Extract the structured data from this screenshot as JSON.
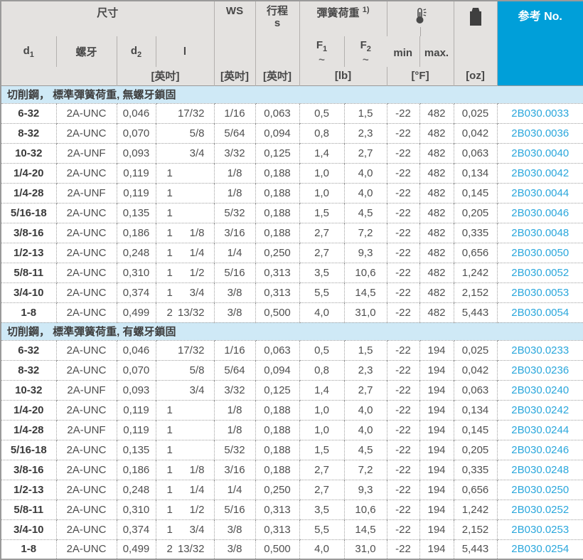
{
  "colors": {
    "accent_header_blue": "#009fd9",
    "ref_link_blue": "#2ba7dc",
    "section_header_blue": "#cfe9f6",
    "header_gray": "#e4e2e0"
  },
  "header": {
    "dim_group": "尺寸",
    "d1_base": "d",
    "d1_sub": "1",
    "thread": "螺牙",
    "d2_base": "d",
    "d2_sub": "2",
    "l_label": "l",
    "inch_unit_dim": "[英吋]",
    "ws": "WS",
    "inch_unit_ws": "[英吋]",
    "stroke_line1": "行程",
    "stroke_line2": "s",
    "inch_unit_stroke": "[英吋]",
    "spring_group": "彈簧荷重",
    "spring_footnote": "1)",
    "f1_base": "F",
    "f1_sub": "1",
    "f1_tilde": "~",
    "f2_base": "F",
    "f2_sub": "2",
    "f2_tilde": "~",
    "lb_unit": "[lb]",
    "temp_min": "min",
    "temp_max": "max.",
    "temp_unit": "[°F]",
    "weight_unit": "[oz]",
    "ref_label": "参考 No.",
    "icons": {
      "temperature": "thermometer-icon",
      "weight": "weight-icon"
    }
  },
  "sections": [
    {
      "title": "切削鋼， 標準彈簧荷重, 無螺牙鎖固",
      "rows": [
        {
          "d1": "6-32",
          "thread": "2A-UNC",
          "d2": "0,046",
          "l_int": "",
          "l_frac": "17/32",
          "ws": "1/16",
          "s": "0,063",
          "f1": "0,5",
          "f2": "1,5",
          "min": "-22",
          "max": "482",
          "oz": "0,025",
          "ref": "2B030.0033"
        },
        {
          "d1": "8-32",
          "thread": "2A-UNC",
          "d2": "0,070",
          "l_int": "",
          "l_frac": "5/8",
          "ws": "5/64",
          "s": "0,094",
          "f1": "0,8",
          "f2": "2,3",
          "min": "-22",
          "max": "482",
          "oz": "0,042",
          "ref": "2B030.0036"
        },
        {
          "d1": "10-32",
          "thread": "2A-UNF",
          "d2": "0,093",
          "l_int": "",
          "l_frac": "3/4",
          "ws": "3/32",
          "s": "0,125",
          "f1": "1,4",
          "f2": "2,7",
          "min": "-22",
          "max": "482",
          "oz": "0,063",
          "ref": "2B030.0040"
        },
        {
          "d1": "1/4-20",
          "thread": "2A-UNC",
          "d2": "0,119",
          "l_int": "1",
          "l_frac": "",
          "ws": "1/8",
          "s": "0,188",
          "f1": "1,0",
          "f2": "4,0",
          "min": "-22",
          "max": "482",
          "oz": "0,134",
          "ref": "2B030.0042"
        },
        {
          "d1": "1/4-28",
          "thread": "2A-UNF",
          "d2": "0,119",
          "l_int": "1",
          "l_frac": "",
          "ws": "1/8",
          "s": "0,188",
          "f1": "1,0",
          "f2": "4,0",
          "min": "-22",
          "max": "482",
          "oz": "0,145",
          "ref": "2B030.0044"
        },
        {
          "d1": "5/16-18",
          "thread": "2A-UNC",
          "d2": "0,135",
          "l_int": "1",
          "l_frac": "",
          "ws": "5/32",
          "s": "0,188",
          "f1": "1,5",
          "f2": "4,5",
          "min": "-22",
          "max": "482",
          "oz": "0,205",
          "ref": "2B030.0046"
        },
        {
          "d1": "3/8-16",
          "thread": "2A-UNC",
          "d2": "0,186",
          "l_int": "1",
          "l_frac": "1/8",
          "ws": "3/16",
          "s": "0,188",
          "f1": "2,7",
          "f2": "7,2",
          "min": "-22",
          "max": "482",
          "oz": "0,335",
          "ref": "2B030.0048"
        },
        {
          "d1": "1/2-13",
          "thread": "2A-UNC",
          "d2": "0,248",
          "l_int": "1",
          "l_frac": "1/4",
          "ws": "1/4",
          "s": "0,250",
          "f1": "2,7",
          "f2": "9,3",
          "min": "-22",
          "max": "482",
          "oz": "0,656",
          "ref": "2B030.0050"
        },
        {
          "d1": "5/8-11",
          "thread": "2A-UNC",
          "d2": "0,310",
          "l_int": "1",
          "l_frac": "1/2",
          "ws": "5/16",
          "s": "0,313",
          "f1": "3,5",
          "f2": "10,6",
          "min": "-22",
          "max": "482",
          "oz": "1,242",
          "ref": "2B030.0052"
        },
        {
          "d1": "3/4-10",
          "thread": "2A-UNC",
          "d2": "0,374",
          "l_int": "1",
          "l_frac": "3/4",
          "ws": "3/8",
          "s": "0,313",
          "f1": "5,5",
          "f2": "14,5",
          "min": "-22",
          "max": "482",
          "oz": "2,152",
          "ref": "2B030.0053"
        },
        {
          "d1": "1-8",
          "thread": "2A-UNC",
          "d2": "0,499",
          "l_int": "2",
          "l_frac": "13/32",
          "ws": "3/8",
          "s": "0,500",
          "f1": "4,0",
          "f2": "31,0",
          "min": "-22",
          "max": "482",
          "oz": "5,443",
          "ref": "2B030.0054"
        }
      ]
    },
    {
      "title": "切削鋼， 標準彈簧荷重, 有螺牙鎖固",
      "rows": [
        {
          "d1": "6-32",
          "thread": "2A-UNC",
          "d2": "0,046",
          "l_int": "",
          "l_frac": "17/32",
          "ws": "1/16",
          "s": "0,063",
          "f1": "0,5",
          "f2": "1,5",
          "min": "-22",
          "max": "194",
          "oz": "0,025",
          "ref": "2B030.0233"
        },
        {
          "d1": "8-32",
          "thread": "2A-UNC",
          "d2": "0,070",
          "l_int": "",
          "l_frac": "5/8",
          "ws": "5/64",
          "s": "0,094",
          "f1": "0,8",
          "f2": "2,3",
          "min": "-22",
          "max": "194",
          "oz": "0,042",
          "ref": "2B030.0236"
        },
        {
          "d1": "10-32",
          "thread": "2A-UNF",
          "d2": "0,093",
          "l_int": "",
          "l_frac": "3/4",
          "ws": "3/32",
          "s": "0,125",
          "f1": "1,4",
          "f2": "2,7",
          "min": "-22",
          "max": "194",
          "oz": "0,063",
          "ref": "2B030.0240"
        },
        {
          "d1": "1/4-20",
          "thread": "2A-UNC",
          "d2": "0,119",
          "l_int": "1",
          "l_frac": "",
          "ws": "1/8",
          "s": "0,188",
          "f1": "1,0",
          "f2": "4,0",
          "min": "-22",
          "max": "194",
          "oz": "0,134",
          "ref": "2B030.0242"
        },
        {
          "d1": "1/4-28",
          "thread": "2A-UNF",
          "d2": "0,119",
          "l_int": "1",
          "l_frac": "",
          "ws": "1/8",
          "s": "0,188",
          "f1": "1,0",
          "f2": "4,0",
          "min": "-22",
          "max": "194",
          "oz": "0,145",
          "ref": "2B030.0244"
        },
        {
          "d1": "5/16-18",
          "thread": "2A-UNC",
          "d2": "0,135",
          "l_int": "1",
          "l_frac": "",
          "ws": "5/32",
          "s": "0,188",
          "f1": "1,5",
          "f2": "4,5",
          "min": "-22",
          "max": "194",
          "oz": "0,205",
          "ref": "2B030.0246"
        },
        {
          "d1": "3/8-16",
          "thread": "2A-UNC",
          "d2": "0,186",
          "l_int": "1",
          "l_frac": "1/8",
          "ws": "3/16",
          "s": "0,188",
          "f1": "2,7",
          "f2": "7,2",
          "min": "-22",
          "max": "194",
          "oz": "0,335",
          "ref": "2B030.0248"
        },
        {
          "d1": "1/2-13",
          "thread": "2A-UNC",
          "d2": "0,248",
          "l_int": "1",
          "l_frac": "1/4",
          "ws": "1/4",
          "s": "0,250",
          "f1": "2,7",
          "f2": "9,3",
          "min": "-22",
          "max": "194",
          "oz": "0,656",
          "ref": "2B030.0250"
        },
        {
          "d1": "5/8-11",
          "thread": "2A-UNC",
          "d2": "0,310",
          "l_int": "1",
          "l_frac": "1/2",
          "ws": "5/16",
          "s": "0,313",
          "f1": "3,5",
          "f2": "10,6",
          "min": "-22",
          "max": "194",
          "oz": "1,242",
          "ref": "2B030.0252"
        },
        {
          "d1": "3/4-10",
          "thread": "2A-UNC",
          "d2": "0,374",
          "l_int": "1",
          "l_frac": "3/4",
          "ws": "3/8",
          "s": "0,313",
          "f1": "5,5",
          "f2": "14,5",
          "min": "-22",
          "max": "194",
          "oz": "2,152",
          "ref": "2B030.0253"
        },
        {
          "d1": "1-8",
          "thread": "2A-UNC",
          "d2": "0,499",
          "l_int": "2",
          "l_frac": "13/32",
          "ws": "3/8",
          "s": "0,500",
          "f1": "4,0",
          "f2": "31,0",
          "min": "-22",
          "max": "194",
          "oz": "5,443",
          "ref": "2B030.0254"
        }
      ]
    }
  ]
}
